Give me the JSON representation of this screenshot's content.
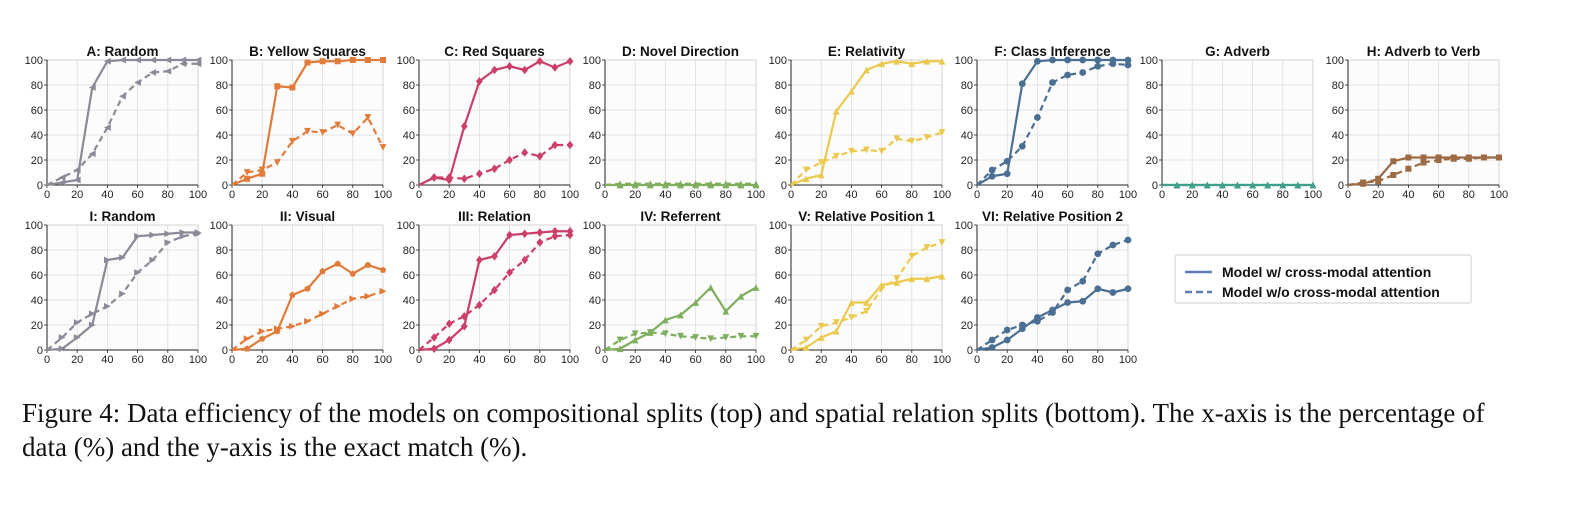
{
  "colors": {
    "A": "#8a8a98",
    "B": "#e07b39",
    "C": "#cc3f68",
    "D": "#7fae5e",
    "E": "#ebc94e",
    "F": "#4a6f93",
    "G": "#3f9e8c",
    "H": "#9c6b45",
    "grid": "#dddddd",
    "axis": "#222222"
  },
  "caption": "Figure 4: Data efficiency of the models on compositional splits (top) and spatial relation splits (bottom). The x-axis is the percentage of data (%) and the y-axis is the exact match (%).",
  "legend": [
    {
      "label": "Model w/ cross-modal attention",
      "style": "solid"
    },
    {
      "label": "Model w/o cross-modal attention",
      "style": "dashed"
    }
  ],
  "chart_data": [
    {
      "id": "A",
      "type": "line",
      "title": "A: Random",
      "color_key": "A",
      "row": 0,
      "col": 0,
      "xlim": [
        0,
        100
      ],
      "ylim": [
        0,
        100
      ],
      "x": [
        0,
        10,
        20,
        30,
        40,
        50,
        60,
        70,
        80,
        90,
        100
      ],
      "markers": [
        "triangle-left",
        "triangle-left"
      ],
      "series": [
        {
          "style": "solid",
          "values": [
            0,
            2,
            4,
            78,
            99,
            100,
            100,
            100,
            100,
            100,
            100
          ]
        },
        {
          "style": "dashed",
          "values": [
            0,
            6,
            12,
            25,
            46,
            71,
            82,
            90,
            91,
            97,
            97
          ]
        }
      ]
    },
    {
      "id": "B",
      "type": "line",
      "title": "B: Yellow Squares",
      "color_key": "B",
      "row": 0,
      "col": 1,
      "xlim": [
        0,
        100
      ],
      "ylim": [
        0,
        100
      ],
      "x": [
        0,
        10,
        20,
        30,
        40,
        50,
        60,
        70,
        80,
        90,
        100
      ],
      "markers": [
        "square",
        "triangle-down"
      ],
      "series": [
        {
          "style": "solid",
          "values": [
            0,
            5,
            9,
            79,
            78,
            98,
            99,
            99,
            100,
            100,
            100
          ]
        },
        {
          "style": "dashed",
          "values": [
            0,
            10,
            12,
            18,
            35,
            43,
            42,
            48,
            41,
            54,
            30
          ]
        }
      ]
    },
    {
      "id": "C",
      "type": "line",
      "title": "C: Red Squares",
      "color_key": "C",
      "row": 0,
      "col": 2,
      "xlim": [
        0,
        100
      ],
      "ylim": [
        0,
        100
      ],
      "x": [
        0,
        10,
        20,
        30,
        40,
        50,
        60,
        70,
        80,
        90,
        100
      ],
      "markers": [
        "diamond",
        "diamond"
      ],
      "series": [
        {
          "style": "solid",
          "values": [
            0,
            6,
            4,
            47,
            83,
            92,
            95,
            92,
            99,
            94,
            99
          ]
        },
        {
          "style": "dashed",
          "values": [
            0,
            6,
            6,
            5,
            9,
            13,
            20,
            26,
            23,
            32,
            32
          ]
        }
      ]
    },
    {
      "id": "D",
      "type": "line",
      "title": "D: Novel Direction",
      "color_key": "D",
      "row": 0,
      "col": 3,
      "xlim": [
        0,
        100
      ],
      "ylim": [
        0,
        100
      ],
      "x": [
        0,
        10,
        20,
        30,
        40,
        50,
        60,
        70,
        80,
        90,
        100
      ],
      "markers": [
        "triangle-up",
        "triangle-up"
      ],
      "series": [
        {
          "style": "solid",
          "values": [
            0,
            0,
            0,
            0,
            0,
            0,
            0,
            0,
            0,
            0,
            0
          ]
        },
        {
          "style": "dashed",
          "values": [
            0,
            1,
            1,
            1,
            1,
            1,
            1,
            1,
            1,
            1,
            1
          ]
        }
      ]
    },
    {
      "id": "E",
      "type": "line",
      "title": "E: Relativity",
      "color_key": "E",
      "row": 0,
      "col": 4,
      "xlim": [
        0,
        100
      ],
      "ylim": [
        0,
        100
      ],
      "x": [
        0,
        10,
        20,
        30,
        40,
        50,
        60,
        70,
        80,
        90,
        100
      ],
      "markers": [
        "triangle-up",
        "triangle-down"
      ],
      "series": [
        {
          "style": "solid",
          "values": [
            0,
            5,
            8,
            59,
            75,
            92,
            97,
            99,
            97,
            99,
            99
          ]
        },
        {
          "style": "dashed",
          "values": [
            0,
            12,
            18,
            23,
            27,
            28,
            27,
            37,
            35,
            38,
            42
          ]
        }
      ]
    },
    {
      "id": "F",
      "type": "line",
      "title": "F: Class Inference",
      "color_key": "F",
      "row": 0,
      "col": 5,
      "xlim": [
        0,
        100
      ],
      "ylim": [
        0,
        100
      ],
      "x": [
        0,
        10,
        20,
        30,
        40,
        50,
        60,
        70,
        80,
        90,
        100
      ],
      "markers": [
        "circle",
        "circle"
      ],
      "series": [
        {
          "style": "solid",
          "values": [
            0,
            7,
            9,
            81,
            99,
            100,
            100,
            100,
            100,
            100,
            100
          ]
        },
        {
          "style": "dashed",
          "values": [
            0,
            12,
            19,
            31,
            54,
            82,
            88,
            90,
            95,
            97,
            96
          ]
        }
      ]
    },
    {
      "id": "G",
      "type": "line",
      "title": "G: Adverb",
      "color_key": "G",
      "row": 0,
      "col": 6,
      "xlim": [
        0,
        100
      ],
      "ylim": [
        0,
        100
      ],
      "x": [
        0,
        10,
        20,
        30,
        40,
        50,
        60,
        70,
        80,
        90,
        100
      ],
      "markers": [
        "triangle-up",
        "triangle-up"
      ],
      "series": [
        {
          "style": "solid",
          "values": [
            0,
            0,
            0,
            0,
            0,
            0,
            0,
            0,
            0,
            0,
            0
          ]
        },
        {
          "style": "dashed",
          "values": [
            0,
            0,
            0,
            0,
            0,
            0,
            0,
            0,
            0,
            0,
            0
          ]
        }
      ]
    },
    {
      "id": "H",
      "type": "line",
      "title": "H: Adverb to Verb",
      "color_key": "H",
      "row": 0,
      "col": 7,
      "xlim": [
        0,
        100
      ],
      "ylim": [
        0,
        100
      ],
      "x": [
        0,
        10,
        20,
        30,
        40,
        50,
        60,
        70,
        80,
        90,
        100
      ],
      "markers": [
        "square",
        "square"
      ],
      "series": [
        {
          "style": "solid",
          "values": [
            0,
            1,
            5,
            19,
            22,
            22,
            22,
            22,
            22,
            22,
            22
          ]
        },
        {
          "style": "dashed",
          "values": [
            0,
            2,
            3,
            8,
            13,
            18,
            20,
            21,
            21,
            22,
            22
          ]
        }
      ]
    },
    {
      "id": "I",
      "type": "line",
      "title": "I: Random",
      "color_key": "A",
      "row": 1,
      "col": 0,
      "xlim": [
        0,
        100
      ],
      "ylim": [
        0,
        100
      ],
      "x": [
        0,
        10,
        20,
        30,
        40,
        50,
        60,
        70,
        80,
        90,
        100
      ],
      "markers": [
        "triangle-right",
        "triangle-right"
      ],
      "series": [
        {
          "style": "solid",
          "values": [
            0,
            1,
            10,
            20,
            72,
            74,
            91,
            92,
            93,
            94,
            94
          ]
        },
        {
          "style": "dashed",
          "values": [
            0,
            10,
            22,
            29,
            35,
            45,
            62,
            72,
            86,
            91,
            93
          ]
        }
      ]
    },
    {
      "id": "II",
      "type": "line",
      "title": "II: Visual",
      "color_key": "B",
      "row": 1,
      "col": 1,
      "xlim": [
        0,
        100
      ],
      "ylim": [
        0,
        100
      ],
      "x": [
        0,
        10,
        20,
        30,
        40,
        50,
        60,
        70,
        80,
        90,
        100
      ],
      "markers": [
        "pentagon",
        "triangle-right"
      ],
      "series": [
        {
          "style": "solid",
          "values": [
            0,
            1,
            9,
            15,
            44,
            49,
            63,
            69,
            61,
            68,
            64
          ]
        },
        {
          "style": "dashed",
          "values": [
            0,
            9,
            15,
            17,
            19,
            23,
            29,
            35,
            41,
            43,
            47
          ]
        }
      ]
    },
    {
      "id": "III",
      "type": "line",
      "title": "III: Relation",
      "color_key": "C",
      "row": 1,
      "col": 2,
      "xlim": [
        0,
        100
      ],
      "ylim": [
        0,
        100
      ],
      "x": [
        0,
        10,
        20,
        30,
        40,
        50,
        60,
        70,
        80,
        90,
        100
      ],
      "markers": [
        "diamond",
        "diamond"
      ],
      "series": [
        {
          "style": "solid",
          "values": [
            0,
            1,
            8,
            19,
            72,
            75,
            92,
            93,
            94,
            95,
            95
          ]
        },
        {
          "style": "dashed",
          "values": [
            0,
            10,
            21,
            27,
            36,
            48,
            62,
            72,
            86,
            91,
            92
          ]
        }
      ]
    },
    {
      "id": "IV",
      "type": "line",
      "title": "IV: Referrent",
      "color_key": "D",
      "row": 1,
      "col": 3,
      "xlim": [
        0,
        100
      ],
      "ylim": [
        0,
        100
      ],
      "x": [
        0,
        10,
        20,
        30,
        40,
        50,
        60,
        70,
        80,
        90,
        100
      ],
      "markers": [
        "triangle-up",
        "triangle-down"
      ],
      "series": [
        {
          "style": "solid",
          "values": [
            0,
            1,
            8,
            14,
            24,
            28,
            38,
            50,
            31,
            43,
            50
          ]
        },
        {
          "style": "dashed",
          "values": [
            0,
            8,
            13,
            14,
            13,
            11,
            10,
            9,
            10,
            11,
            11
          ]
        }
      ]
    },
    {
      "id": "V",
      "type": "line",
      "title": "V: Relative Position 1",
      "color_key": "E",
      "row": 1,
      "col": 4,
      "xlim": [
        0,
        100
      ],
      "ylim": [
        0,
        100
      ],
      "x": [
        0,
        10,
        20,
        30,
        40,
        50,
        60,
        70,
        80,
        90,
        100
      ],
      "markers": [
        "triangle-up",
        "triangle-down"
      ],
      "series": [
        {
          "style": "solid",
          "values": [
            0,
            2,
            10,
            15,
            38,
            38,
            52,
            54,
            57,
            57,
            59
          ]
        },
        {
          "style": "dashed",
          "values": [
            0,
            8,
            19,
            22,
            26,
            31,
            49,
            57,
            75,
            82,
            86
          ]
        }
      ]
    },
    {
      "id": "VI",
      "type": "line",
      "title": "VI: Relative Position 2",
      "color_key": "F",
      "row": 1,
      "col": 5,
      "xlim": [
        0,
        100
      ],
      "ylim": [
        0,
        100
      ],
      "x": [
        0,
        10,
        20,
        30,
        40,
        50,
        60,
        70,
        80,
        90,
        100
      ],
      "markers": [
        "circle",
        "circle"
      ],
      "series": [
        {
          "style": "solid",
          "values": [
            0,
            2,
            8,
            17,
            26,
            32,
            38,
            39,
            49,
            46,
            49
          ]
        },
        {
          "style": "dashed",
          "values": [
            0,
            8,
            16,
            20,
            23,
            30,
            48,
            55,
            77,
            84,
            88
          ]
        }
      ]
    }
  ]
}
